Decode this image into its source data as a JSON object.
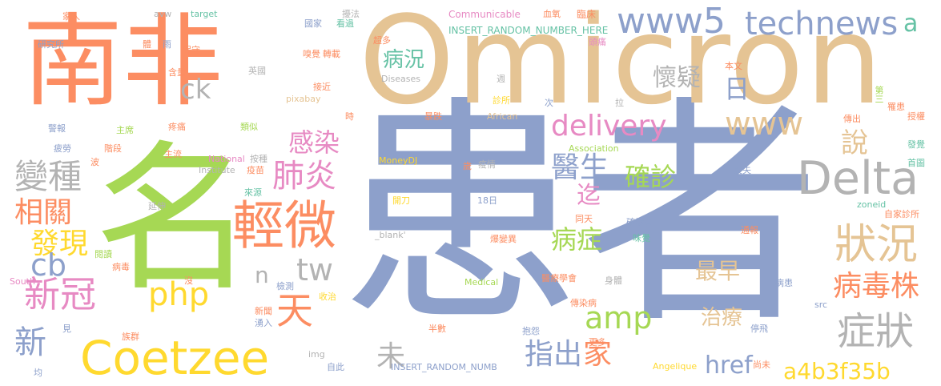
{
  "palette": {
    "orange": "#fc8d62",
    "blue": "#8da0cb",
    "pink": "#e78ac3",
    "green": "#a6d854",
    "yellow": "#ffd92f",
    "tan": "#e5c494",
    "gray": "#b3b3b3",
    "teal": "#66c2a5"
  },
  "words": [
    {
      "text": "患者",
      "color": "blue"
    },
    {
      "text": "Omicron",
      "color": "tan"
    },
    {
      "text": "名",
      "color": "green"
    },
    {
      "text": "南非",
      "color": "orange"
    },
    {
      "text": "Coetzee",
      "color": "yellow"
    },
    {
      "text": "Delta",
      "color": "gray"
    },
    {
      "text": "www5",
      "color": "blue"
    },
    {
      "text": "technews",
      "color": "blue"
    },
    {
      "text": "輕微",
      "color": "orange"
    },
    {
      "text": "狀況",
      "color": "tan"
    },
    {
      "text": "delivery",
      "color": "pink"
    },
    {
      "text": "www",
      "color": "tan"
    },
    {
      "text": "變種",
      "color": "gray"
    },
    {
      "text": "肺炎",
      "color": "pink"
    },
    {
      "text": "感染",
      "color": "pink"
    },
    {
      "text": "醫生",
      "color": "blue"
    },
    {
      "text": "症狀",
      "color": "gray"
    },
    {
      "text": "病毒株",
      "color": "orange"
    },
    {
      "text": "確診",
      "color": "green"
    },
    {
      "text": "新冠",
      "color": "pink"
    },
    {
      "text": "相關",
      "color": "orange"
    },
    {
      "text": "發現",
      "color": "yellow"
    },
    {
      "text": "天",
      "color": "orange"
    },
    {
      "text": "php",
      "color": "yellow"
    },
    {
      "text": "amp",
      "color": "green"
    },
    {
      "text": "cb",
      "color": "blue"
    },
    {
      "text": "新",
      "color": "blue"
    },
    {
      "text": "tw",
      "color": "gray"
    },
    {
      "text": "a4b3f35b",
      "color": "yellow"
    },
    {
      "text": "指出",
      "color": "blue"
    },
    {
      "text": "家",
      "color": "orange"
    },
    {
      "text": "未",
      "color": "gray"
    },
    {
      "text": "href",
      "color": "blue"
    },
    {
      "text": "病症",
      "color": "green"
    },
    {
      "text": "最早",
      "color": "tan"
    },
    {
      "text": "治療",
      "color": "tan"
    },
    {
      "text": "病況",
      "color": "teal"
    },
    {
      "text": "ck",
      "color": "gray"
    },
    {
      "text": "懷疑",
      "color": "gray"
    },
    {
      "text": "日",
      "color": "blue"
    },
    {
      "text": "說",
      "color": "tan"
    },
    {
      "text": "迄",
      "color": "pink"
    },
    {
      "text": "a",
      "color": "teal"
    },
    {
      "text": "n",
      "color": "gray"
    },
    {
      "text": "Communicable",
      "color": "pink"
    },
    {
      "text": "INSERT_RANDOM_NUMBER_HERE",
      "color": "teal"
    },
    {
      "text": "INSERT_RANDOM_NUMB",
      "color": "blue"
    },
    {
      "text": "Diseases",
      "color": "gray"
    },
    {
      "text": "African",
      "color": "tan"
    },
    {
      "text": "MoneyDJ",
      "color": "yellow"
    },
    {
      "text": "Association",
      "color": "green"
    },
    {
      "text": "National",
      "color": "pink"
    },
    {
      "text": "Institute",
      "color": "gray"
    },
    {
      "text": "Medical",
      "color": "green"
    },
    {
      "text": "South",
      "color": "pink"
    },
    {
      "text": "Angelique",
      "color": "yellow"
    },
    {
      "text": "pixabay",
      "color": "tan"
    },
    {
      "text": "avw",
      "color": "gray"
    },
    {
      "text": "target",
      "color": "teal"
    },
    {
      "text": "zoneid",
      "color": "teal"
    },
    {
      "text": "_blank'",
      "color": "gray"
    },
    {
      "text": "img",
      "color": "gray"
    },
    {
      "text": "src",
      "color": "blue"
    },
    {
      "text": "血氧",
      "color": "orange"
    },
    {
      "text": "臨床",
      "color": "orange"
    },
    {
      "text": "頭痛",
      "color": "pink"
    },
    {
      "text": "本文",
      "color": "orange"
    },
    {
      "text": "第三",
      "color": "green"
    },
    {
      "text": "罹患",
      "color": "orange"
    },
    {
      "text": "授權",
      "color": "orange"
    },
    {
      "text": "傳出",
      "color": "orange"
    },
    {
      "text": "發覺",
      "color": "teal"
    },
    {
      "text": "首圖",
      "color": "teal"
    },
    {
      "text": "自家診所",
      "color": "orange"
    },
    {
      "text": "通報",
      "color": "orange"
    },
    {
      "text": "確診者",
      "color": "blue"
    },
    {
      "text": "味覺",
      "color": "teal"
    },
    {
      "text": "同天",
      "color": "orange"
    },
    {
      "text": "傳染病",
      "color": "orange"
    },
    {
      "text": "醫療學會",
      "color": "orange"
    },
    {
      "text": "身體",
      "color": "gray"
    },
    {
      "text": "病患",
      "color": "blue"
    },
    {
      "text": "停飛",
      "color": "blue"
    },
    {
      "text": "尚未",
      "color": "orange"
    },
    {
      "text": "抱怨",
      "color": "blue"
    },
    {
      "text": "更多",
      "color": "orange"
    },
    {
      "text": "半數",
      "color": "orange"
    },
    {
      "text": "爆變異",
      "color": "orange"
    },
    {
      "text": "18日",
      "color": "blue"
    },
    {
      "text": "開刀",
      "color": "yellow"
    },
    {
      "text": "疫情",
      "color": "gray"
    },
    {
      "text": "歲",
      "color": "orange"
    },
    {
      "text": "喪失",
      "color": "blue"
    },
    {
      "text": "週",
      "color": "gray"
    },
    {
      "text": "次",
      "color": "blue"
    },
    {
      "text": "拉",
      "color": "gray"
    },
    {
      "text": "診所",
      "color": "yellow"
    },
    {
      "text": "暴跌",
      "color": "orange"
    },
    {
      "text": "時",
      "color": "orange"
    },
    {
      "text": "擾法",
      "color": "gray"
    },
    {
      "text": "國家",
      "color": "blue"
    },
    {
      "text": "看過",
      "color": "teal"
    },
    {
      "text": "超多",
      "color": "orange"
    },
    {
      "text": "嗅覺",
      "color": "orange"
    },
    {
      "text": "轉載",
      "color": "orange"
    },
    {
      "text": "接近",
      "color": "orange"
    },
    {
      "text": "英國",
      "color": "gray"
    },
    {
      "text": "類似",
      "color": "green"
    },
    {
      "text": "疼痛",
      "color": "orange"
    },
    {
      "text": "主席",
      "color": "green"
    },
    {
      "text": "主流",
      "color": "orange"
    },
    {
      "text": "按種",
      "color": "gray"
    },
    {
      "text": "疫苗",
      "color": "orange"
    },
    {
      "text": "來源",
      "color": "teal"
    },
    {
      "text": "延伸",
      "color": "gray"
    },
    {
      "text": "閱讀",
      "color": "green"
    },
    {
      "text": "病毒",
      "color": "orange"
    },
    {
      "text": "波",
      "color": "orange"
    },
    {
      "text": "階段",
      "color": "orange"
    },
    {
      "text": "警報",
      "color": "blue"
    },
    {
      "text": "疲勞",
      "color": "blue"
    },
    {
      "text": "含量",
      "color": "orange"
    },
    {
      "text": "研究所",
      "color": "blue"
    },
    {
      "text": "家人",
      "color": "orange"
    },
    {
      "text": "體",
      "color": "orange"
    },
    {
      "text": "雨",
      "color": "blue"
    },
    {
      "text": "保守",
      "color": "orange"
    },
    {
      "text": "沒",
      "color": "orange"
    },
    {
      "text": "檢測",
      "color": "blue"
    },
    {
      "text": "收治",
      "color": "yellow"
    },
    {
      "text": "新聞",
      "color": "orange"
    },
    {
      "text": "湧入",
      "color": "blue"
    },
    {
      "text": "自此",
      "color": "blue"
    },
    {
      "text": "族群",
      "color": "orange"
    },
    {
      "text": "見",
      "color": "blue"
    },
    {
      "text": "均",
      "color": "blue"
    }
  ]
}
